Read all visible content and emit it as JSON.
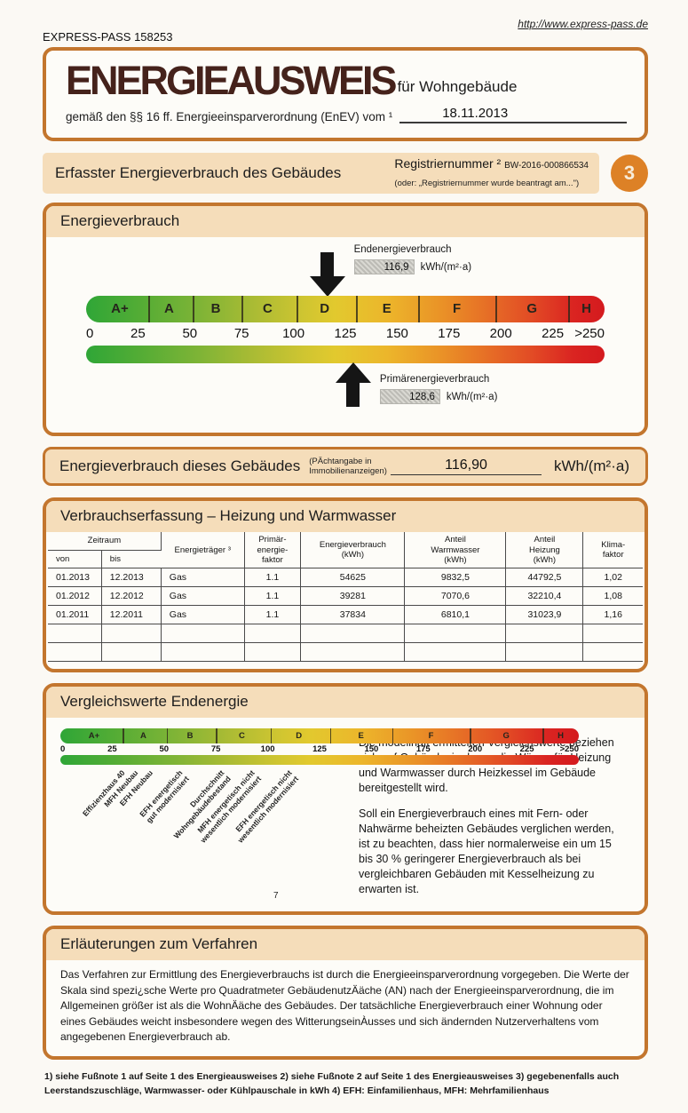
{
  "colors": {
    "frame_orange": "#c3762e",
    "header_tan": "#f5ddba",
    "badge_orange": "#dd8126",
    "title_brown": "#45221b",
    "scale_green": "#2fa637",
    "scale_red": "#d41a1e"
  },
  "header": {
    "doc_number": "EXPRESS-PASS 158253",
    "url": "http://www.express-pass.de"
  },
  "title_box": {
    "title": "ENERGIEAUSWEIS",
    "subtitle": "für Wohngebäude",
    "law_line": "gemäß den §§ 16 ff. Energieeinsparverordnung (EnEV) vom ¹",
    "date": "18.11.2013"
  },
  "section_header": {
    "title": "Erfasster Energieverbrauch des Gebäudes",
    "reg_label": "Registriernummer ²",
    "reg_value": "BW-2016-000866534",
    "reg_note": "(oder: „Registriernummer wurde beantragt am...\")",
    "page_badge": "3"
  },
  "energy_chart": {
    "box_title": "Energieverbrauch",
    "end_label": "Endenergieverbrauch",
    "end_value": "116,9",
    "end_unit": "kWh/(m²·a)",
    "end_percent": 46.8,
    "primary_label": "Primärenergieverbrauch",
    "primary_value": "128,6",
    "primary_unit": "kWh/(m²·a)",
    "primary_percent": 51.4,
    "classes": [
      "A+",
      "A",
      "B",
      "C",
      "D",
      "E",
      "F",
      "G",
      "H"
    ],
    "ticks": [
      "0",
      "25",
      "50",
      "75",
      "100",
      "125",
      "150",
      "175",
      "200",
      "225",
      ">250"
    ]
  },
  "building_row": {
    "title": "Energieverbrauch dieses Gebäudes",
    "note": "(PÄchtangabe in\nImmobilienanzeigen)",
    "value": "116,90",
    "unit": "kWh/(m²·a)"
  },
  "consumption_table": {
    "title": "Verbrauchserfassung – Heizung und Warmwasser",
    "headers": {
      "zeitraum": "Zeitraum",
      "von": "von",
      "bis": "bis",
      "traeger": "Energieträger ³",
      "faktor": "Primär-\nenergie-\nfaktor",
      "verbrauch": "Energieverbrauch\n(kWh)",
      "warmwasser": "Anteil\nWarmwasser\n(kWh)",
      "heizung": "Anteil\nHeizung\n(kWh)",
      "klima": "Klima-\nfaktor"
    },
    "rows": [
      [
        "01.2013",
        "12.2013",
        "Gas",
        "1.1",
        "54625",
        "9832,5",
        "44792,5",
        "1,02"
      ],
      [
        "01.2012",
        "12.2012",
        "Gas",
        "1.1",
        "39281",
        "7070,6",
        "32210,4",
        "1,08"
      ],
      [
        "01.2011",
        "12.2011",
        "Gas",
        "1.1",
        "37834",
        "6810,1",
        "31023,9",
        "1,16"
      ],
      [
        "",
        "",
        "",
        "",
        "",
        "",
        "",
        ""
      ],
      [
        "",
        "",
        "",
        "",
        "",
        "",
        "",
        ""
      ]
    ]
  },
  "comparison": {
    "title": "Vergleichswerte Endenergie",
    "classes": [
      "A+",
      "A",
      "B",
      "C",
      "D",
      "E",
      "F",
      "G",
      "H"
    ],
    "ticks": [
      "0",
      "25",
      "50",
      "75",
      "100",
      "125",
      "150",
      "175",
      "200",
      "225",
      ">250"
    ],
    "labels": [
      "Effizienzhaus 40",
      "MFH Neubau",
      "EFH Neubau",
      "EFH energetisch\ngut modernisiert",
      "Durchschnitt\nWohngebäudebestand",
      "MFH energetisch nicht\nwesentlich modernisiert",
      "EFH energetisch nicht\nwesentlich modernisiert"
    ],
    "marker": "7",
    "para1": "Die modellhaft ermittelten Vergleichswerte beziehen sich auf Gebäude, in denen die Wärme für Heizung und Warmwasser durch Heizkessel im Gebäude bereitgestellt wird.",
    "para2": "Soll ein Energieverbrauch eines mit Fern- oder Nahwärme beheizten Gebäudes verglichen werden, ist zu beachten, dass hier normalerweise ein um 15 bis 30 % geringerer Energieverbrauch als bei vergleichbaren Gebäuden mit Kesselheizung zu erwarten ist."
  },
  "explanation": {
    "title": "Erläuterungen zum Verfahren",
    "text": "Das Verfahren zur Ermittlung des Energieverbrauchs ist durch die Energieeinsparverordnung vorgegeben. Die Werte der Skala sind spezi¿sche Werte pro Quadratmeter GebäudenutzÄäche (AN) nach der Energieeinsparverordnung, die im Allgemeinen größer ist als die WohnÄäche des Gebäudes. Der tatsächliche Energieverbrauch einer Wohnung oder eines Gebäudes weicht insbesondere wegen des WitterungseinÀusses und sich ändernden Nutzerverhaltens vom angegebenen Energieverbrauch ab."
  },
  "footnotes": "1) siehe Fußnote 1 auf Seite 1 des Energieausweises   2) siehe Fußnote 2 auf Seite 1 des Energieausweises   3) gegebenenfalls auch Leerstandszuschläge, Warmwasser- oder Kühlpauschale in kWh   4) EFH: Einfamilienhaus, MFH: Mehrfamilienhaus"
}
